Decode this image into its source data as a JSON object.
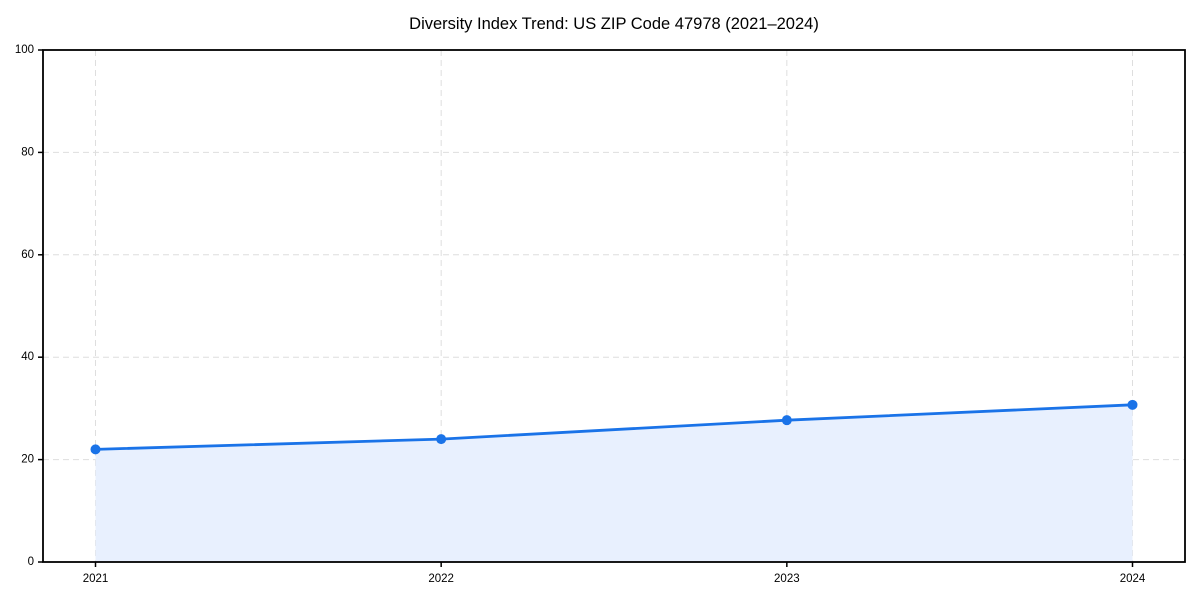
{
  "chart_data": {
    "type": "line",
    "title": "Diversity Index Trend: US ZIP Code 47978 (2021–2024)",
    "categories": [
      "2021",
      "2022",
      "2023",
      "2024"
    ],
    "series": [
      {
        "name": "Diversity Index",
        "values": [
          22,
          24,
          27.7,
          30.7
        ]
      }
    ],
    "xlabel": "",
    "ylabel": "",
    "ylim": [
      0,
      100
    ],
    "yticks": [
      0,
      20,
      40,
      60,
      80,
      100
    ],
    "grid": "dashed",
    "legend": "none",
    "area_fill": true,
    "marker": "circle",
    "colors": {
      "line": "#1a73e8",
      "marker": "#1a73e8",
      "area": "#e8f0fe",
      "grid": "#dedede",
      "axis": "#000000",
      "text": "#000000",
      "background": "#ffffff"
    }
  }
}
